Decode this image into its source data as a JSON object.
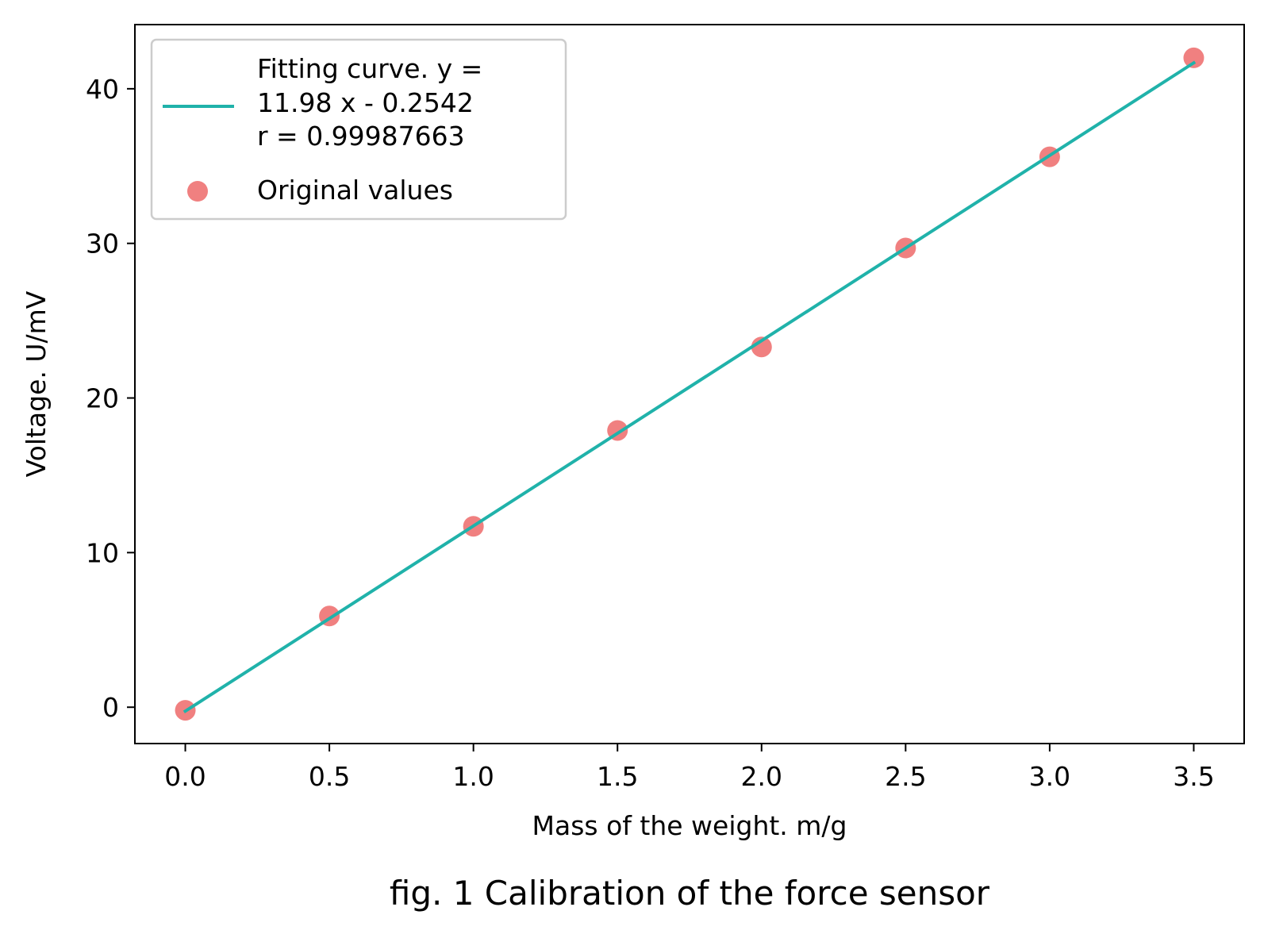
{
  "chart_data": {
    "type": "scatter",
    "caption": "fig. 1 Calibration of the force sensor",
    "xlabel": "Mass of the weight. m/g",
    "ylabel": "Voltage. U/mV",
    "xlim": [
      -0.175,
      3.675
    ],
    "ylim": [
      -2.35,
      44.15
    ],
    "xticks": [
      "0.0",
      "0.5",
      "1.0",
      "1.5",
      "2.0",
      "2.5",
      "3.0",
      "3.5"
    ],
    "xtick_values": [
      0,
      0.5,
      1.0,
      1.5,
      2.0,
      2.5,
      3.0,
      3.5
    ],
    "yticks": [
      "0",
      "10",
      "20",
      "30",
      "40"
    ],
    "ytick_values": [
      0,
      10,
      20,
      30,
      40
    ],
    "grid": false,
    "legend_position": "upper-left",
    "series": [
      {
        "name": "Fitting curve. y =\n11.98 x - 0.2542\nr = 0.99987663",
        "legend_lines": [
          "Fitting curve. y =",
          "11.98 x - 0.2542",
          "r = 0.99987663"
        ],
        "kind": "line",
        "color": "#20b2aa",
        "slope": 11.98,
        "intercept": -0.2542,
        "x_range": [
          0,
          3.5
        ]
      },
      {
        "name": "Original values",
        "kind": "scatter",
        "color": "#f08080",
        "x": [
          0.0,
          0.5,
          1.0,
          1.5,
          2.0,
          2.5,
          3.0,
          3.5
        ],
        "y": [
          -0.2,
          5.9,
          11.7,
          17.9,
          23.3,
          29.7,
          35.6,
          42.0
        ]
      }
    ]
  }
}
